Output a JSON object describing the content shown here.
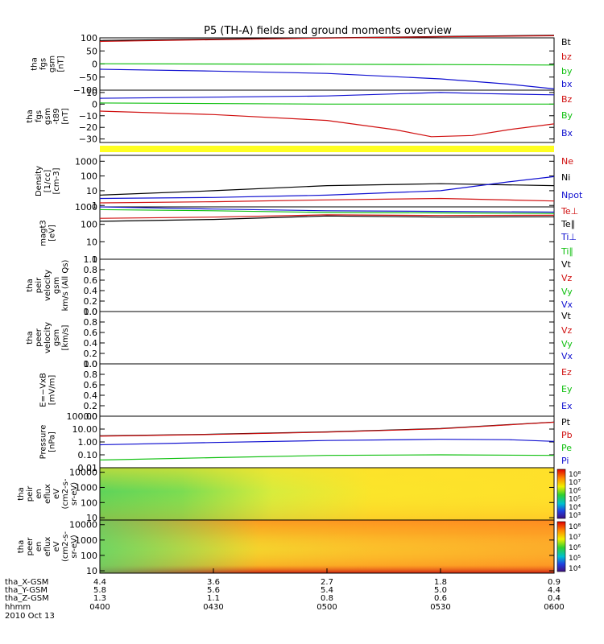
{
  "title": "P5 (TH-A) fields and ground moments overview",
  "colors": {
    "black": "#000000",
    "red": "#d01010",
    "green": "#10c010",
    "blue": "#1010d0",
    "yellow_bar": "#ffff20"
  },
  "chart_data": {
    "type": "line",
    "x_axis": {
      "time_label": "hhmm",
      "date_label": "2010 Oct 13",
      "ticks": [
        "0400",
        "0430",
        "0500",
        "0530",
        "0600"
      ],
      "rows": [
        {
          "label": "tha_X-GSM",
          "values": [
            "4.4",
            "3.6",
            "2.7",
            "1.8",
            "0.9"
          ]
        },
        {
          "label": "tha_Y-GSM",
          "values": [
            "5.8",
            "5.6",
            "5.4",
            "5.0",
            "4.4"
          ]
        },
        {
          "label": "tha_Z-GSM",
          "values": [
            "1.3",
            "1.1",
            "0.8",
            "0.6",
            "0.4"
          ]
        }
      ]
    },
    "panels": [
      {
        "name": "bfield-fgs-gsm",
        "ylabel": [
          "tha",
          "fgs",
          "gsm",
          "[nT]"
        ],
        "scale": "linear",
        "ylim": [
          -100,
          100
        ],
        "yticks": [
          "100",
          "50",
          "0",
          "−50",
          "−100"
        ],
        "yticks_values": [
          100,
          50,
          0,
          -50,
          -100
        ],
        "legend": [
          {
            "text": "Bt",
            "color": "#000000"
          },
          {
            "text": "bz",
            "color": "#d01010"
          },
          {
            "text": "by",
            "color": "#10c010"
          },
          {
            "text": "bx",
            "color": "#1010d0"
          }
        ],
        "series": [
          {
            "name": "Bt",
            "color": "#000000",
            "x": [
              0,
              0.25,
              0.5,
              0.75,
              1.0
            ],
            "y": [
              90,
              95,
              100,
              105,
              110
            ]
          },
          {
            "name": "bz",
            "color": "#d01010",
            "x": [
              0,
              0.25,
              0.5,
              0.75,
              1.0
            ],
            "y": [
              86,
              93,
              99,
              104,
              108
            ]
          },
          {
            "name": "by",
            "color": "#10c010",
            "x": [
              0,
              0.25,
              0.5,
              0.75,
              1.0
            ],
            "y": [
              1,
              0,
              -1,
              -2,
              -4
            ]
          },
          {
            "name": "bx",
            "color": "#1010d0",
            "x": [
              0,
              0.25,
              0.5,
              0.75,
              0.9,
              1.0
            ],
            "y": [
              -20,
              -27,
              -36,
              -57,
              -77,
              -95
            ]
          }
        ]
      },
      {
        "name": "bfield-fgs-gsm-dipole",
        "ylabel": [
          "tha",
          "fgs",
          "gsm",
          "-t89",
          "[nT]"
        ],
        "scale": "linear",
        "ylim": [
          -33,
          12
        ],
        "yticks": [
          "10",
          "0",
          "−10",
          "−20",
          "−30"
        ],
        "yticks_values": [
          10,
          0,
          -10,
          -20,
          -30
        ],
        "legend": [
          {
            "text": "Bz",
            "color": "#d01010"
          },
          {
            "text": "By",
            "color": "#10c010"
          },
          {
            "text": "Bx",
            "color": "#1010d0"
          }
        ],
        "series": [
          {
            "name": "Bz",
            "color": "#d01010",
            "x": [
              0,
              0.25,
              0.5,
              0.65,
              0.73,
              0.82,
              0.9,
              1.0
            ],
            "y": [
              -6,
              -9,
              -14,
              -22,
              -28,
              -27,
              -22,
              -17
            ]
          },
          {
            "name": "By",
            "color": "#10c010",
            "x": [
              0,
              0.5,
              1.0
            ],
            "y": [
              1,
              0,
              0
            ]
          },
          {
            "name": "Bx",
            "color": "#1010d0",
            "x": [
              0,
              0.25,
              0.5,
              0.75,
              0.85,
              1.0
            ],
            "y": [
              5,
              6,
              7,
              10,
              9,
              8
            ]
          }
        ]
      },
      {
        "name": "mode-bar",
        "scale": "bar",
        "color": "#ffff20"
      },
      {
        "name": "density",
        "ylabel": [
          "Density",
          "[1/cc]",
          "[cm-3]"
        ],
        "scale": "log",
        "ylim": [
          0.8,
          2500
        ],
        "yticks": [
          "1000",
          "100",
          "10",
          "1"
        ],
        "yticks_values": [
          1000,
          100,
          10,
          1
        ],
        "legend": [
          {
            "text": "Ne",
            "color": "#d01010"
          },
          {
            "text": "Ni",
            "color": "#000000"
          },
          {
            "text": "Npot",
            "color": "#1010d0"
          }
        ],
        "series": [
          {
            "name": "Ni",
            "color": "#000000",
            "x": [
              0,
              0.25,
              0.5,
              0.75,
              1.0
            ],
            "y": [
              5,
              10,
              22,
              30,
              22
            ]
          },
          {
            "name": "Ne",
            "color": "#d01010",
            "x": [
              0,
              0.25,
              0.5,
              0.75,
              1.0
            ],
            "y": [
              1.5,
              1.8,
              2.4,
              3,
              2
            ]
          },
          {
            "name": "Npot",
            "color": "#1010d0",
            "x": [
              0,
              0.25,
              0.5,
              0.75,
              0.9,
              1.0
            ],
            "y": [
              3,
              3.5,
              5,
              10,
              40,
              90
            ]
          }
        ]
      },
      {
        "name": "temperature",
        "ylabel": [
          "magt3",
          "[eV]"
        ],
        "scale": "log",
        "ylim": [
          1,
          1000
        ],
        "yticks": [
          "1000",
          "100",
          "10",
          "1"
        ],
        "yticks_values": [
          1000,
          100,
          10,
          1
        ],
        "legend": [
          {
            "text": "Te⊥",
            "color": "#d01010"
          },
          {
            "text": "Te∥",
            "color": "#000000"
          },
          {
            "text": "Ti⊥",
            "color": "#1010d0"
          },
          {
            "text": "Ti∥",
            "color": "#10c010"
          }
        ],
        "series": [
          {
            "name": "Ti⊥",
            "color": "#1010d0",
            "x": [
              0,
              0.25,
              0.5,
              0.75,
              1.0
            ],
            "y": [
              1000,
              750,
              600,
              550,
              500
            ]
          },
          {
            "name": "Ti∥",
            "color": "#10c010",
            "x": [
              0,
              0.25,
              0.5,
              0.75,
              1.0
            ],
            "y": [
              700,
              600,
              480,
              450,
              420
            ]
          },
          {
            "name": "Te⊥",
            "color": "#d01010",
            "x": [
              0,
              0.25,
              0.5,
              0.75,
              1.0
            ],
            "y": [
              220,
              260,
              350,
              320,
              330
            ]
          },
          {
            "name": "Te∥",
            "color": "#000000",
            "x": [
              0,
              0.25,
              0.5,
              0.75,
              1.0
            ],
            "y": [
              150,
              190,
              300,
              260,
              270
            ]
          }
        ]
      },
      {
        "name": "peir-velocity",
        "ylabel": [
          "tha",
          "peir",
          "velocity",
          "gsm",
          "km/s (All Qs)"
        ],
        "scale": "linear",
        "ylim": [
          0,
          1
        ],
        "yticks": [
          "1.0",
          "0.8",
          "0.6",
          "0.4",
          "0.2",
          "0.0"
        ],
        "yticks_values": [
          1,
          0.8,
          0.6,
          0.4,
          0.2,
          0
        ],
        "legend": [
          {
            "text": "Vt",
            "color": "#000000"
          },
          {
            "text": "Vz",
            "color": "#d01010"
          },
          {
            "text": "Vy",
            "color": "#10c010"
          },
          {
            "text": "Vx",
            "color": "#1010d0"
          }
        ],
        "series": []
      },
      {
        "name": "peer-velocity",
        "ylabel": [
          "tha",
          "peer",
          "velocity",
          "gsm",
          "[km/s]"
        ],
        "scale": "linear",
        "ylim": [
          0,
          1
        ],
        "yticks": [
          "1.0",
          "0.8",
          "0.6",
          "0.4",
          "0.2",
          "0.0"
        ],
        "yticks_values": [
          1,
          0.8,
          0.6,
          0.4,
          0.2,
          0
        ],
        "legend": [
          {
            "text": "Vt",
            "color": "#000000"
          },
          {
            "text": "Vz",
            "color": "#d01010"
          },
          {
            "text": "Vy",
            "color": "#10c010"
          },
          {
            "text": "Vx",
            "color": "#1010d0"
          }
        ],
        "series": []
      },
      {
        "name": "efield",
        "ylabel": [
          "E=−VxB",
          "[mV/m]"
        ],
        "scale": "linear",
        "ylim": [
          0,
          1
        ],
        "yticks": [
          "1.0",
          "0.8",
          "0.6",
          "0.4",
          "0.2",
          "0.0"
        ],
        "yticks_values": [
          1,
          0.8,
          0.6,
          0.4,
          0.2,
          0
        ],
        "legend": [
          {
            "text": "Ez",
            "color": "#d01010"
          },
          {
            "text": "Ey",
            "color": "#10c010"
          },
          {
            "text": "Ex",
            "color": "#1010d0"
          }
        ],
        "series": []
      },
      {
        "name": "pressure",
        "ylabel": [
          "Pressure",
          "[nPa]"
        ],
        "scale": "log",
        "ylim": [
          0.01,
          100
        ],
        "yticks": [
          "100.00",
          "10.00",
          "1.00",
          "0.10",
          "0.01"
        ],
        "yticks_values": [
          100,
          10,
          1,
          0.1,
          0.01
        ],
        "legend": [
          {
            "text": "Pt",
            "color": "#000000"
          },
          {
            "text": "Pb",
            "color": "#d01010"
          },
          {
            "text": "Pe",
            "color": "#10c010"
          },
          {
            "text": "Pi",
            "color": "#1010d0"
          }
        ],
        "series": [
          {
            "name": "Pt",
            "color": "#000000",
            "x": [
              0,
              0.25,
              0.5,
              0.75,
              1.0
            ],
            "y": [
              3,
              4,
              6,
              11,
              35
            ]
          },
          {
            "name": "Pb",
            "color": "#d01010",
            "x": [
              0,
              0.25,
              0.5,
              0.75,
              1.0
            ],
            "y": [
              2.8,
              3.8,
              5.8,
              10.5,
              34
            ]
          },
          {
            "name": "Pi",
            "color": "#1010d0",
            "x": [
              0,
              0.25,
              0.5,
              0.75,
              0.9,
              1.0
            ],
            "y": [
              0.6,
              0.9,
              1.3,
              1.6,
              1.5,
              1.1
            ]
          },
          {
            "name": "Pe",
            "color": "#10c010",
            "x": [
              0,
              0.25,
              0.5,
              0.75,
              1.0
            ],
            "y": [
              0.04,
              0.06,
              0.09,
              0.1,
              0.09
            ]
          }
        ]
      },
      {
        "name": "peir-energy-spectrogram",
        "ylabel": [
          "tha",
          "peir",
          "en",
          "eflux",
          "eV",
          "(cm2-s-",
          "sr-eV)"
        ],
        "scale": "log",
        "ylim": [
          7,
          20000
        ],
        "yticks": [
          "10000",
          "1000",
          "100",
          "10"
        ],
        "yticks_values": [
          10000,
          1000,
          100,
          10
        ],
        "spectrogram": "ion",
        "colorbar": {
          "ticks": [
            "10⁸",
            "10⁷",
            "10⁶",
            "10⁵",
            "10⁴",
            "10³"
          ]
        }
      },
      {
        "name": "peer-energy-spectrogram",
        "ylabel": [
          "tha",
          "peer",
          "en",
          "eflux",
          "eV",
          "(cm2-s-",
          "sr-eV)"
        ],
        "scale": "log",
        "ylim": [
          7,
          20000
        ],
        "yticks": [
          "10000",
          "1000",
          "100",
          "10"
        ],
        "yticks_values": [
          10000,
          1000,
          100,
          10
        ],
        "spectrogram": "electron",
        "colorbar": {
          "ticks": [
            "10⁸",
            "10⁷",
            "10⁶",
            "10⁵",
            "10⁴"
          ]
        }
      }
    ]
  }
}
